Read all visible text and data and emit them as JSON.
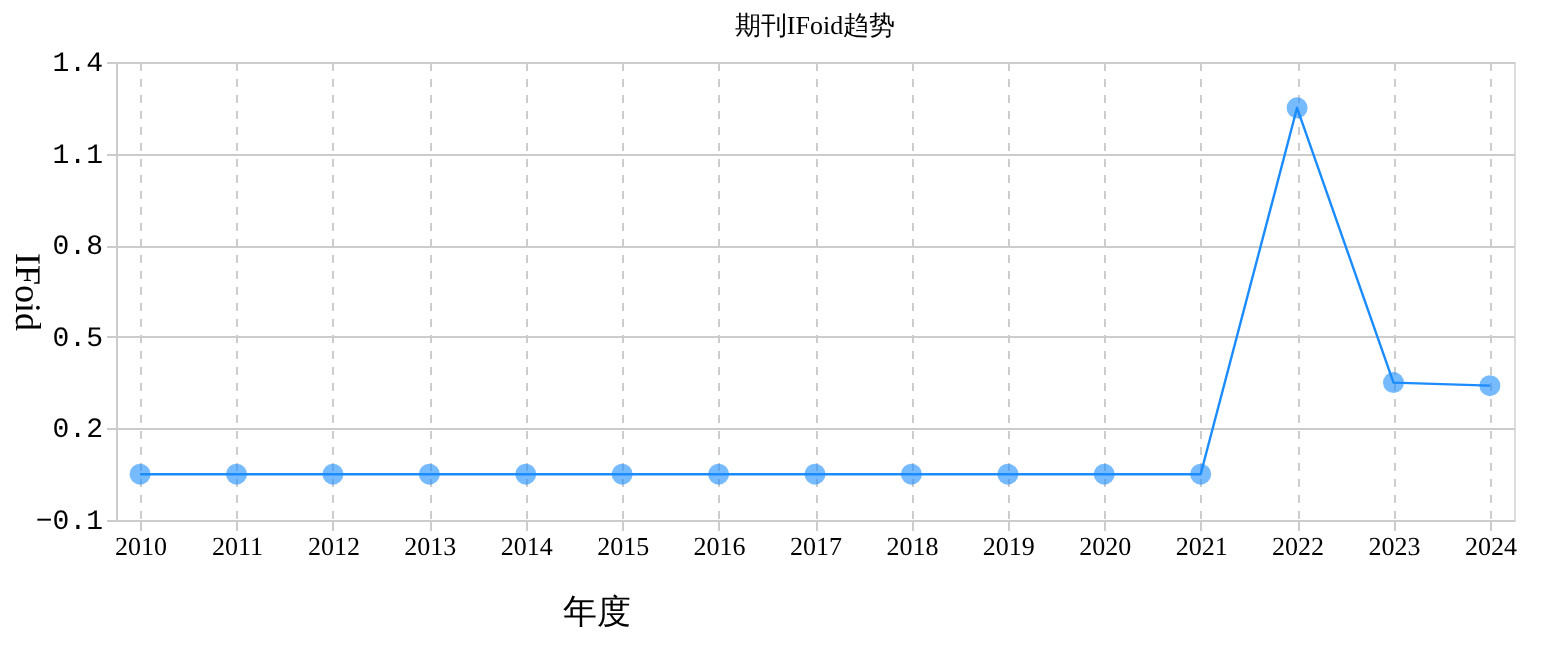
{
  "chart_data": {
    "type": "line",
    "title": "期刊IFoid趋势",
    "xlabel": "年度",
    "ylabel": "IFoid",
    "categories": [
      "2010",
      "2011",
      "2012",
      "2013",
      "2014",
      "2015",
      "2016",
      "2017",
      "2018",
      "2019",
      "2020",
      "2021",
      "2022",
      "2023",
      "2024"
    ],
    "series": [
      {
        "color": "#1a8cff",
        "values": [
          0.05,
          0.05,
          0.05,
          0.05,
          0.05,
          0.05,
          0.05,
          0.05,
          0.05,
          0.05,
          0.05,
          0.05,
          1.25,
          0.35,
          0.34
        ]
      }
    ],
    "ylim": [
      -0.1,
      1.4
    ],
    "yticks": [
      -0.1,
      0.2,
      0.5,
      0.8,
      1.1,
      1.4
    ],
    "grid": true,
    "marker": "circle",
    "line_style": "solid",
    "legend": false
  }
}
